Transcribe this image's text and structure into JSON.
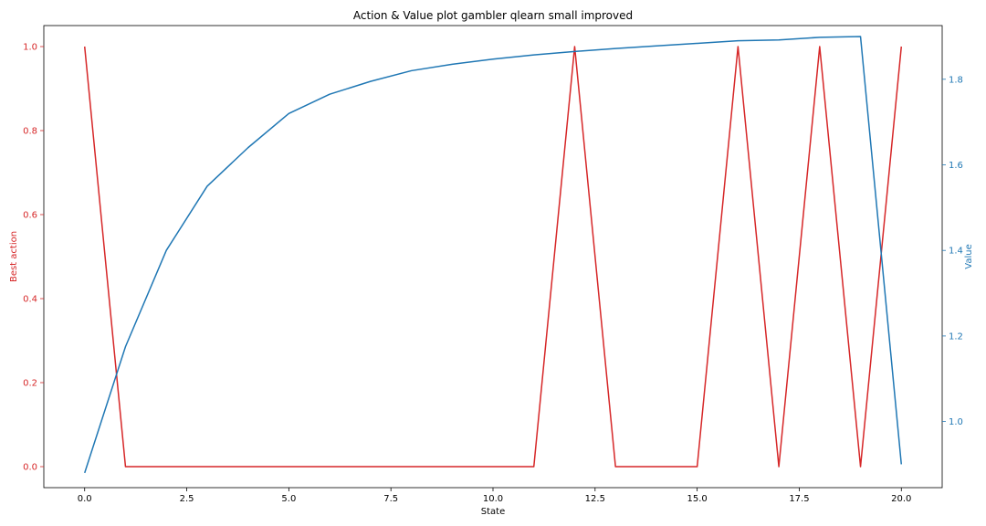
{
  "chart_data": {
    "type": "line",
    "title": "Action & Value plot gambler qlearn small improved",
    "xlabel": "State",
    "ylabel_left": "Best action",
    "ylabel_right": "Value",
    "xlim": [
      -1.0,
      21.0
    ],
    "ylim_left": [
      -0.05,
      1.05
    ],
    "ylim_right": [
      0.8455,
      1.9255
    ],
    "x_ticks": [
      "0.0",
      "2.5",
      "5.0",
      "7.5",
      "10.0",
      "12.5",
      "15.0",
      "17.5",
      "20.0"
    ],
    "y_ticks_left": [
      "0.0",
      "0.2",
      "0.4",
      "0.6",
      "0.8",
      "1.0"
    ],
    "y_ticks_right": [
      "1.0",
      "1.2",
      "1.4",
      "1.6",
      "1.8"
    ],
    "grid": false,
    "colors": {
      "left": "#d62728",
      "right": "#1f77b4"
    },
    "x": [
      0,
      1,
      2,
      3,
      4,
      5,
      6,
      7,
      8,
      9,
      10,
      11,
      12,
      13,
      14,
      15,
      16,
      17,
      18,
      19,
      20
    ],
    "series": [
      {
        "axis": "left",
        "color": "#d62728",
        "values": [
          1,
          0,
          0,
          0,
          0,
          0,
          0,
          0,
          0,
          0,
          0,
          0,
          1,
          0,
          0,
          0,
          1,
          0,
          1,
          0,
          1
        ]
      },
      {
        "axis": "right",
        "color": "#1f77b4",
        "values": [
          0.88,
          1.175,
          1.4,
          1.55,
          1.64,
          1.72,
          1.765,
          1.795,
          1.82,
          1.835,
          1.847,
          1.857,
          1.865,
          1.872,
          1.878,
          1.884,
          1.89,
          1.892,
          1.898,
          1.9,
          0.9
        ]
      }
    ]
  }
}
